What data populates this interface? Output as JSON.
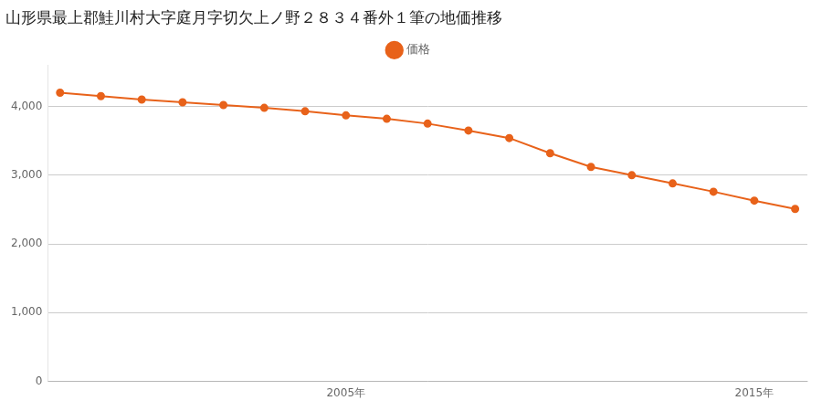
{
  "chart_data": {
    "type": "line",
    "title": "山形県最上郡鮭川村大字庭月字切欠上ノ野２８３４番外１筆の地価推移",
    "x": [
      1998,
      1999,
      2000,
      2001,
      2002,
      2003,
      2004,
      2005,
      2006,
      2007,
      2008,
      2009,
      2010,
      2011,
      2012,
      2013,
      2014,
      2015,
      2016
    ],
    "series": [
      {
        "name": "価格",
        "color": "#E8621A",
        "marker": "circle",
        "line_style": "solid",
        "values": [
          4200,
          4150,
          4100,
          4060,
          4020,
          3980,
          3930,
          3870,
          3820,
          3750,
          3650,
          3540,
          3320,
          3120,
          3000,
          2880,
          2760,
          2630,
          2510
        ]
      }
    ],
    "xlim": [
      1997.7,
      2016.3
    ],
    "xticks": [
      {
        "value": 2005,
        "label": "2005年"
      },
      {
        "value": 2015,
        "label": "2015年"
      }
    ],
    "ylim": [
      0,
      4600
    ],
    "yticks": [
      0,
      {
        "value": 1000,
        "label": "1,000"
      },
      {
        "value": 2000,
        "label": "2,000"
      },
      {
        "value": 3000,
        "label": "3,000"
      },
      {
        "value": 4000,
        "label": "4,000"
      }
    ],
    "grid": true,
    "legend": "top"
  }
}
